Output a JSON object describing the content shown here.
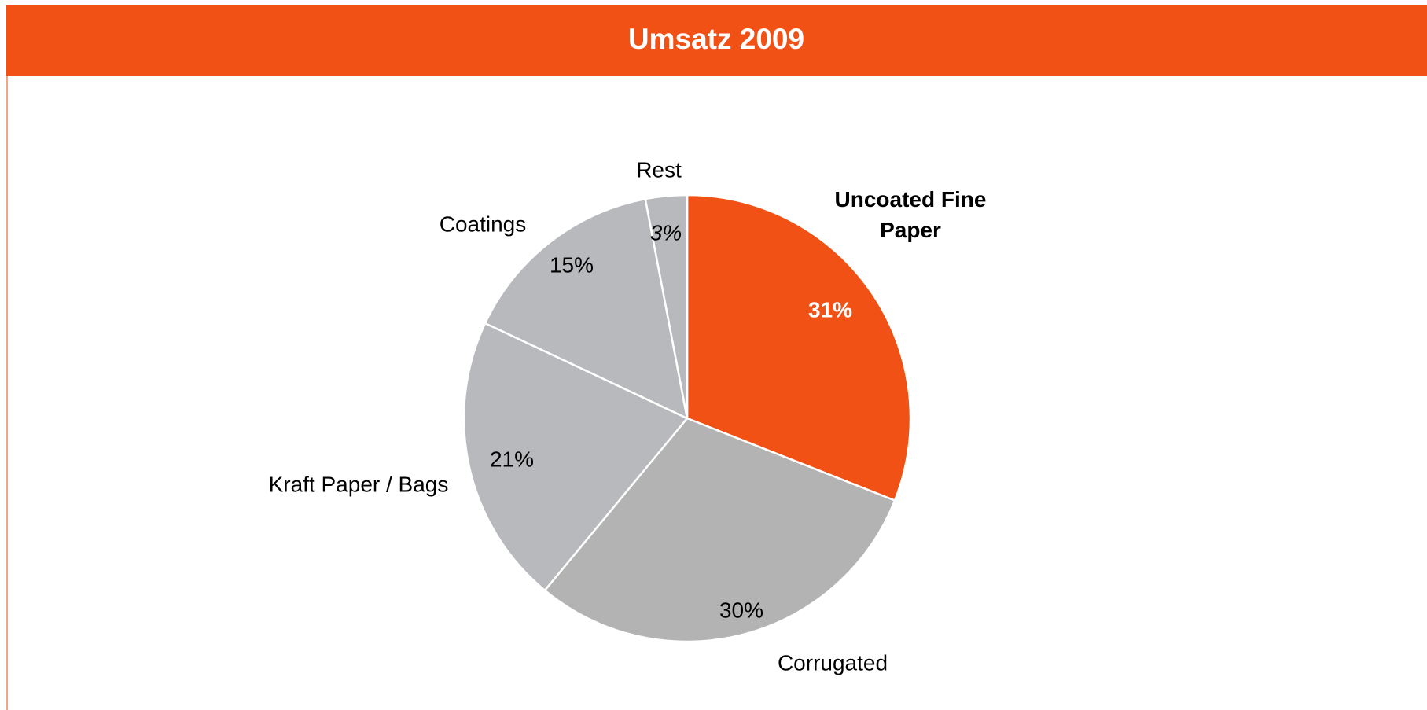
{
  "chart_data": {
    "type": "pie",
    "title": "Umsatz 2009",
    "categories": [
      "Uncoated Fine Paper",
      "Corrugated",
      "Kraft Paper / Bags",
      "Coatings",
      "Rest"
    ],
    "values": [
      31,
      30,
      21,
      15,
      3
    ],
    "value_labels": [
      "31%",
      "30%",
      "21%",
      "15%",
      "3%"
    ],
    "colors": [
      "#f15114",
      "#b3b3b3",
      "#b8b9bc",
      "#b8b9bc",
      "#b8b9bc"
    ]
  }
}
